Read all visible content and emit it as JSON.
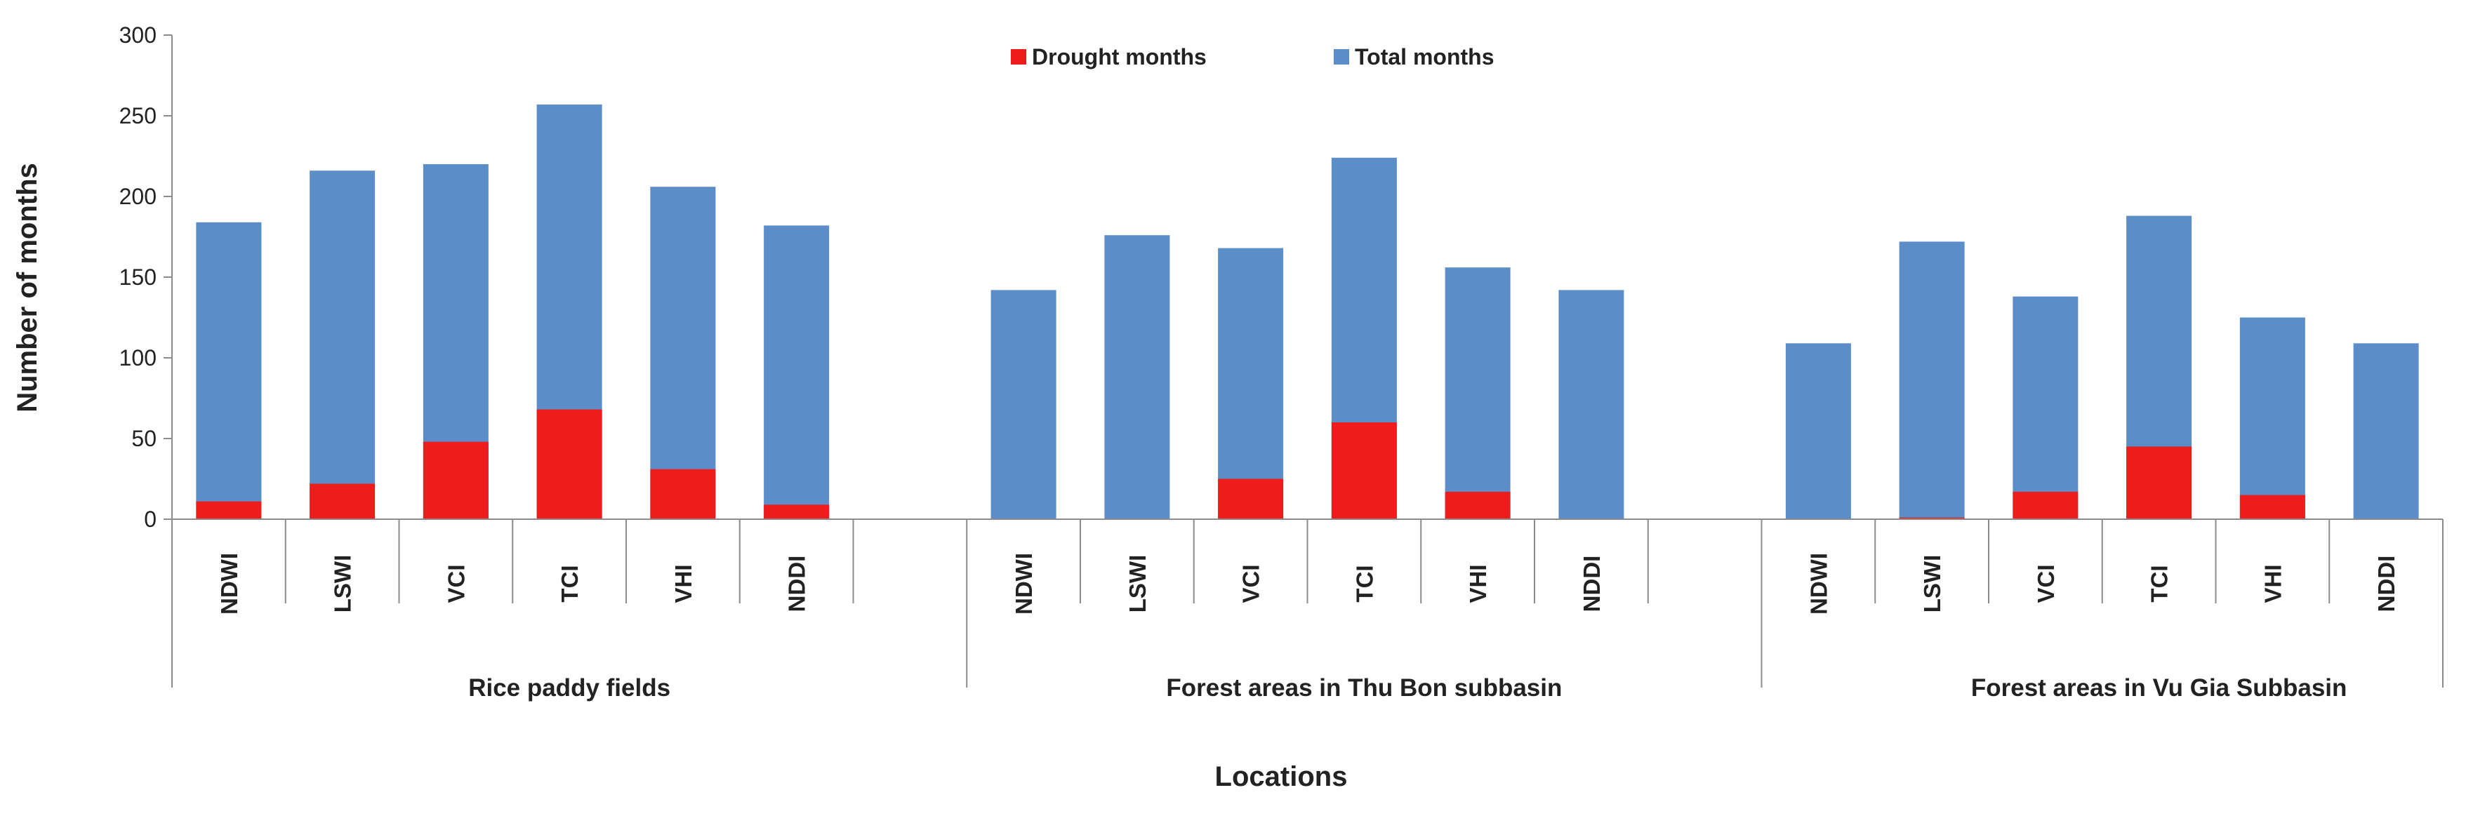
{
  "chart_data": {
    "type": "bar",
    "stacked": false,
    "overlap": true,
    "ylabel": "Number of months",
    "xlabel": "Locations",
    "ylim": [
      0,
      300
    ],
    "yticks": [
      0,
      50,
      100,
      150,
      200,
      250,
      300
    ],
    "grid": false,
    "legend_position": "top-center",
    "groups": [
      {
        "label": "Rice paddy fields",
        "categories": [
          "NDWI",
          "LSWI",
          "VCI",
          "TCI",
          "VHI",
          "NDDI"
        ],
        "total": [
          184,
          216,
          220,
          257,
          206,
          182
        ],
        "drought": [
          11,
          22,
          48,
          68,
          31,
          9
        ]
      },
      {
        "label": "Forest areas in Thu Bon subbasin",
        "categories": [
          "NDWI",
          "LSWI",
          "VCI",
          "TCI",
          "VHI",
          "NDDI"
        ],
        "total": [
          142,
          176,
          168,
          224,
          156,
          142
        ],
        "drought": [
          0,
          0,
          25,
          60,
          17,
          0
        ]
      },
      {
        "label": "Forest areas in Vu Gia Subbasin",
        "categories": [
          "NDWI",
          "LSWI",
          "VCI",
          "TCI",
          "VHI",
          "NDDI"
        ],
        "total": [
          109,
          172,
          138,
          188,
          125,
          109
        ],
        "drought": [
          0,
          1,
          17,
          45,
          15,
          0
        ]
      }
    ],
    "series": [
      {
        "name": "Drought months",
        "key": "drought",
        "color": "#ee1c1c"
      },
      {
        "name": "Total months",
        "key": "total",
        "color": "#5b8ec9"
      }
    ]
  },
  "colors": {
    "axis": "#8c8c8c",
    "text": "#222222"
  }
}
